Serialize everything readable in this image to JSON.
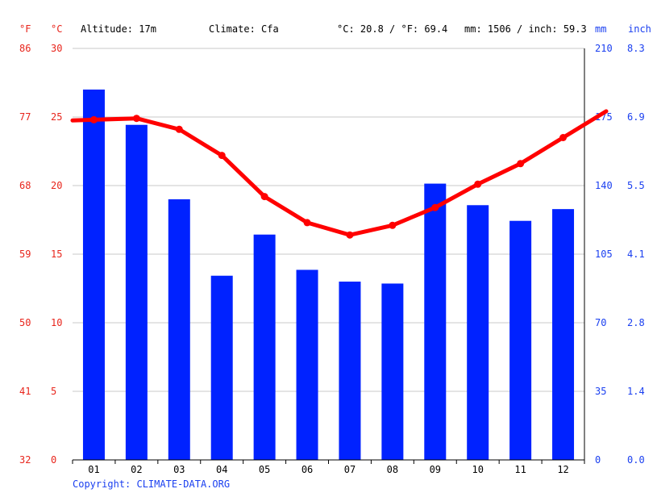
{
  "header": {
    "altitude": "Altitude: 17m",
    "climate": "Climate: Cfa",
    "temp_avg": "°C: 20.8 / °F: 69.4",
    "precip_total": "mm: 1506 / inch: 59.3"
  },
  "copyright": "Copyright: CLIMATE-DATA.ORG",
  "colors": {
    "temp": "#ff0000",
    "precip": "#0022ff",
    "temp_axis": "#e8251c",
    "precip_axis": "#1a3ff0"
  },
  "chart_data": {
    "type": "bar+line",
    "categories": [
      "01",
      "02",
      "03",
      "04",
      "05",
      "06",
      "07",
      "08",
      "09",
      "10",
      "11",
      "12"
    ],
    "series": [
      {
        "values": [
          189,
          171,
          133,
          94,
          115,
          97,
          91,
          90,
          141,
          130,
          122,
          128
        ]
      },
      {
        "values": [
          24.8,
          24.9,
          24.1,
          22.2,
          19.2,
          17.3,
          16.4,
          17.1,
          18.4,
          20.1,
          21.6,
          23.5
        ]
      }
    ],
    "temp_ylim_c": [
      0,
      30
    ],
    "temp_ylim_f": [
      32,
      86
    ],
    "precip_ylim_mm": [
      0,
      210
    ],
    "precip_ylim_inch": [
      0,
      8.3
    ],
    "axes": {
      "c_unit": "°C",
      "f_unit": "°F",
      "mm_unit": "mm",
      "inch_unit": "inch",
      "c_ticks": [
        "0",
        "5",
        "10",
        "15",
        "20",
        "25",
        "30"
      ],
      "f_ticks": [
        "32",
        "41",
        "50",
        "59",
        "68",
        "77",
        "86"
      ],
      "mm_ticks": [
        "0",
        "35",
        "70",
        "105",
        "140",
        "175",
        "210"
      ],
      "inch_ticks": [
        "0.0",
        "1.4",
        "2.8",
        "4.1",
        "5.5",
        "6.9",
        "8.3"
      ]
    },
    "grid": true
  }
}
